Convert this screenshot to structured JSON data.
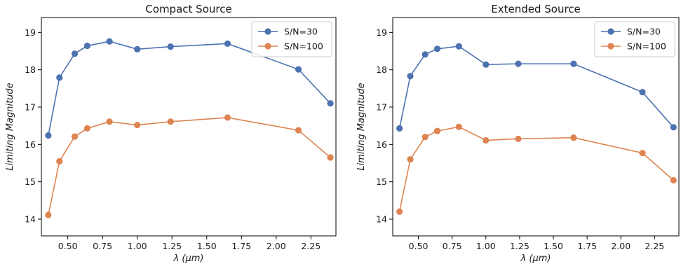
{
  "colors": {
    "series_1": "#4c72b0",
    "series_2": "#dd8452",
    "axes": "#000000",
    "legend_border": "#cccccc"
  },
  "chart_data": [
    {
      "type": "line",
      "title": "Compact Source",
      "xlabel": "λ (μm)",
      "ylabel": "Limiting Magnitude",
      "xlim": [
        0.31,
        2.43
      ],
      "ylim": [
        13.55,
        19.4
      ],
      "xticks": [
        0.5,
        0.75,
        1.0,
        1.25,
        1.5,
        1.75,
        2.0,
        2.25
      ],
      "xtick_labels": [
        "0.50",
        "0.75",
        "1.00",
        "1.25",
        "1.50",
        "1.75",
        "2.00",
        "2.25"
      ],
      "yticks": [
        14,
        15,
        16,
        17,
        18,
        19
      ],
      "ytick_labels": [
        "14",
        "15",
        "16",
        "17",
        "18",
        "19"
      ],
      "grid": false,
      "legend_position": "top-right",
      "x": [
        0.36,
        0.44,
        0.55,
        0.64,
        0.8,
        1.0,
        1.24,
        1.65,
        2.16,
        2.39
      ],
      "series": [
        {
          "name": "S/N=30",
          "color": "#4c72b0",
          "values": [
            16.24,
            17.79,
            18.43,
            18.64,
            18.76,
            18.55,
            18.62,
            18.7,
            18.01,
            17.1
          ]
        },
        {
          "name": "S/N=100",
          "color": "#dd8452",
          "values": [
            14.11,
            15.55,
            16.21,
            16.43,
            16.61,
            16.52,
            16.61,
            16.72,
            16.38,
            15.65
          ]
        }
      ]
    },
    {
      "type": "line",
      "title": "Extended Source",
      "xlabel": "λ (μm)",
      "ylabel": "Limiting Magnitude",
      "xlim": [
        0.31,
        2.43
      ],
      "ylim": [
        13.55,
        19.4
      ],
      "xticks": [
        0.5,
        0.75,
        1.0,
        1.25,
        1.5,
        1.75,
        2.0,
        2.25
      ],
      "xtick_labels": [
        "0.50",
        "0.75",
        "1.00",
        "1.25",
        "1.50",
        "1.75",
        "2.00",
        "2.25"
      ],
      "yticks": [
        14,
        15,
        16,
        17,
        18,
        19
      ],
      "ytick_labels": [
        "14",
        "15",
        "16",
        "17",
        "18",
        "19"
      ],
      "grid": false,
      "legend_position": "top-right",
      "x": [
        0.36,
        0.44,
        0.55,
        0.64,
        0.8,
        1.0,
        1.24,
        1.65,
        2.16,
        2.39
      ],
      "series": [
        {
          "name": "S/N=30",
          "color": "#4c72b0",
          "values": [
            16.43,
            17.83,
            18.41,
            18.56,
            18.63,
            18.14,
            18.16,
            18.16,
            17.4,
            16.46
          ]
        },
        {
          "name": "S/N=100",
          "color": "#dd8452",
          "values": [
            14.2,
            15.6,
            16.2,
            16.36,
            16.47,
            16.11,
            16.15,
            16.18,
            15.77,
            15.04
          ]
        }
      ]
    }
  ]
}
